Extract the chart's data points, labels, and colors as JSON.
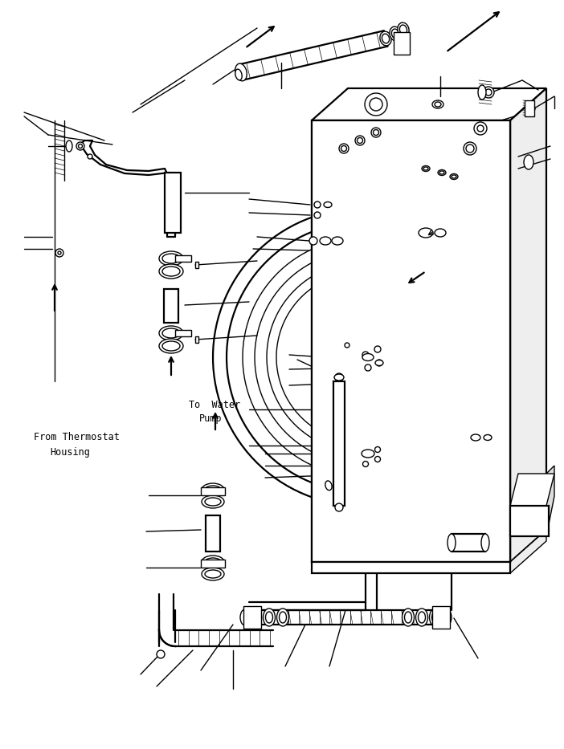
{
  "background_color": "#ffffff",
  "line_color": "#000000",
  "figsize": [
    7.02,
    9.33
  ],
  "dpi": 100,
  "labels": {
    "from_thermostat": "From Thermostat\n      Housing",
    "to_water_pump_left": "To  Water\n   Pump",
    "to_water_pump_right": "To  Water\n   Pump"
  }
}
